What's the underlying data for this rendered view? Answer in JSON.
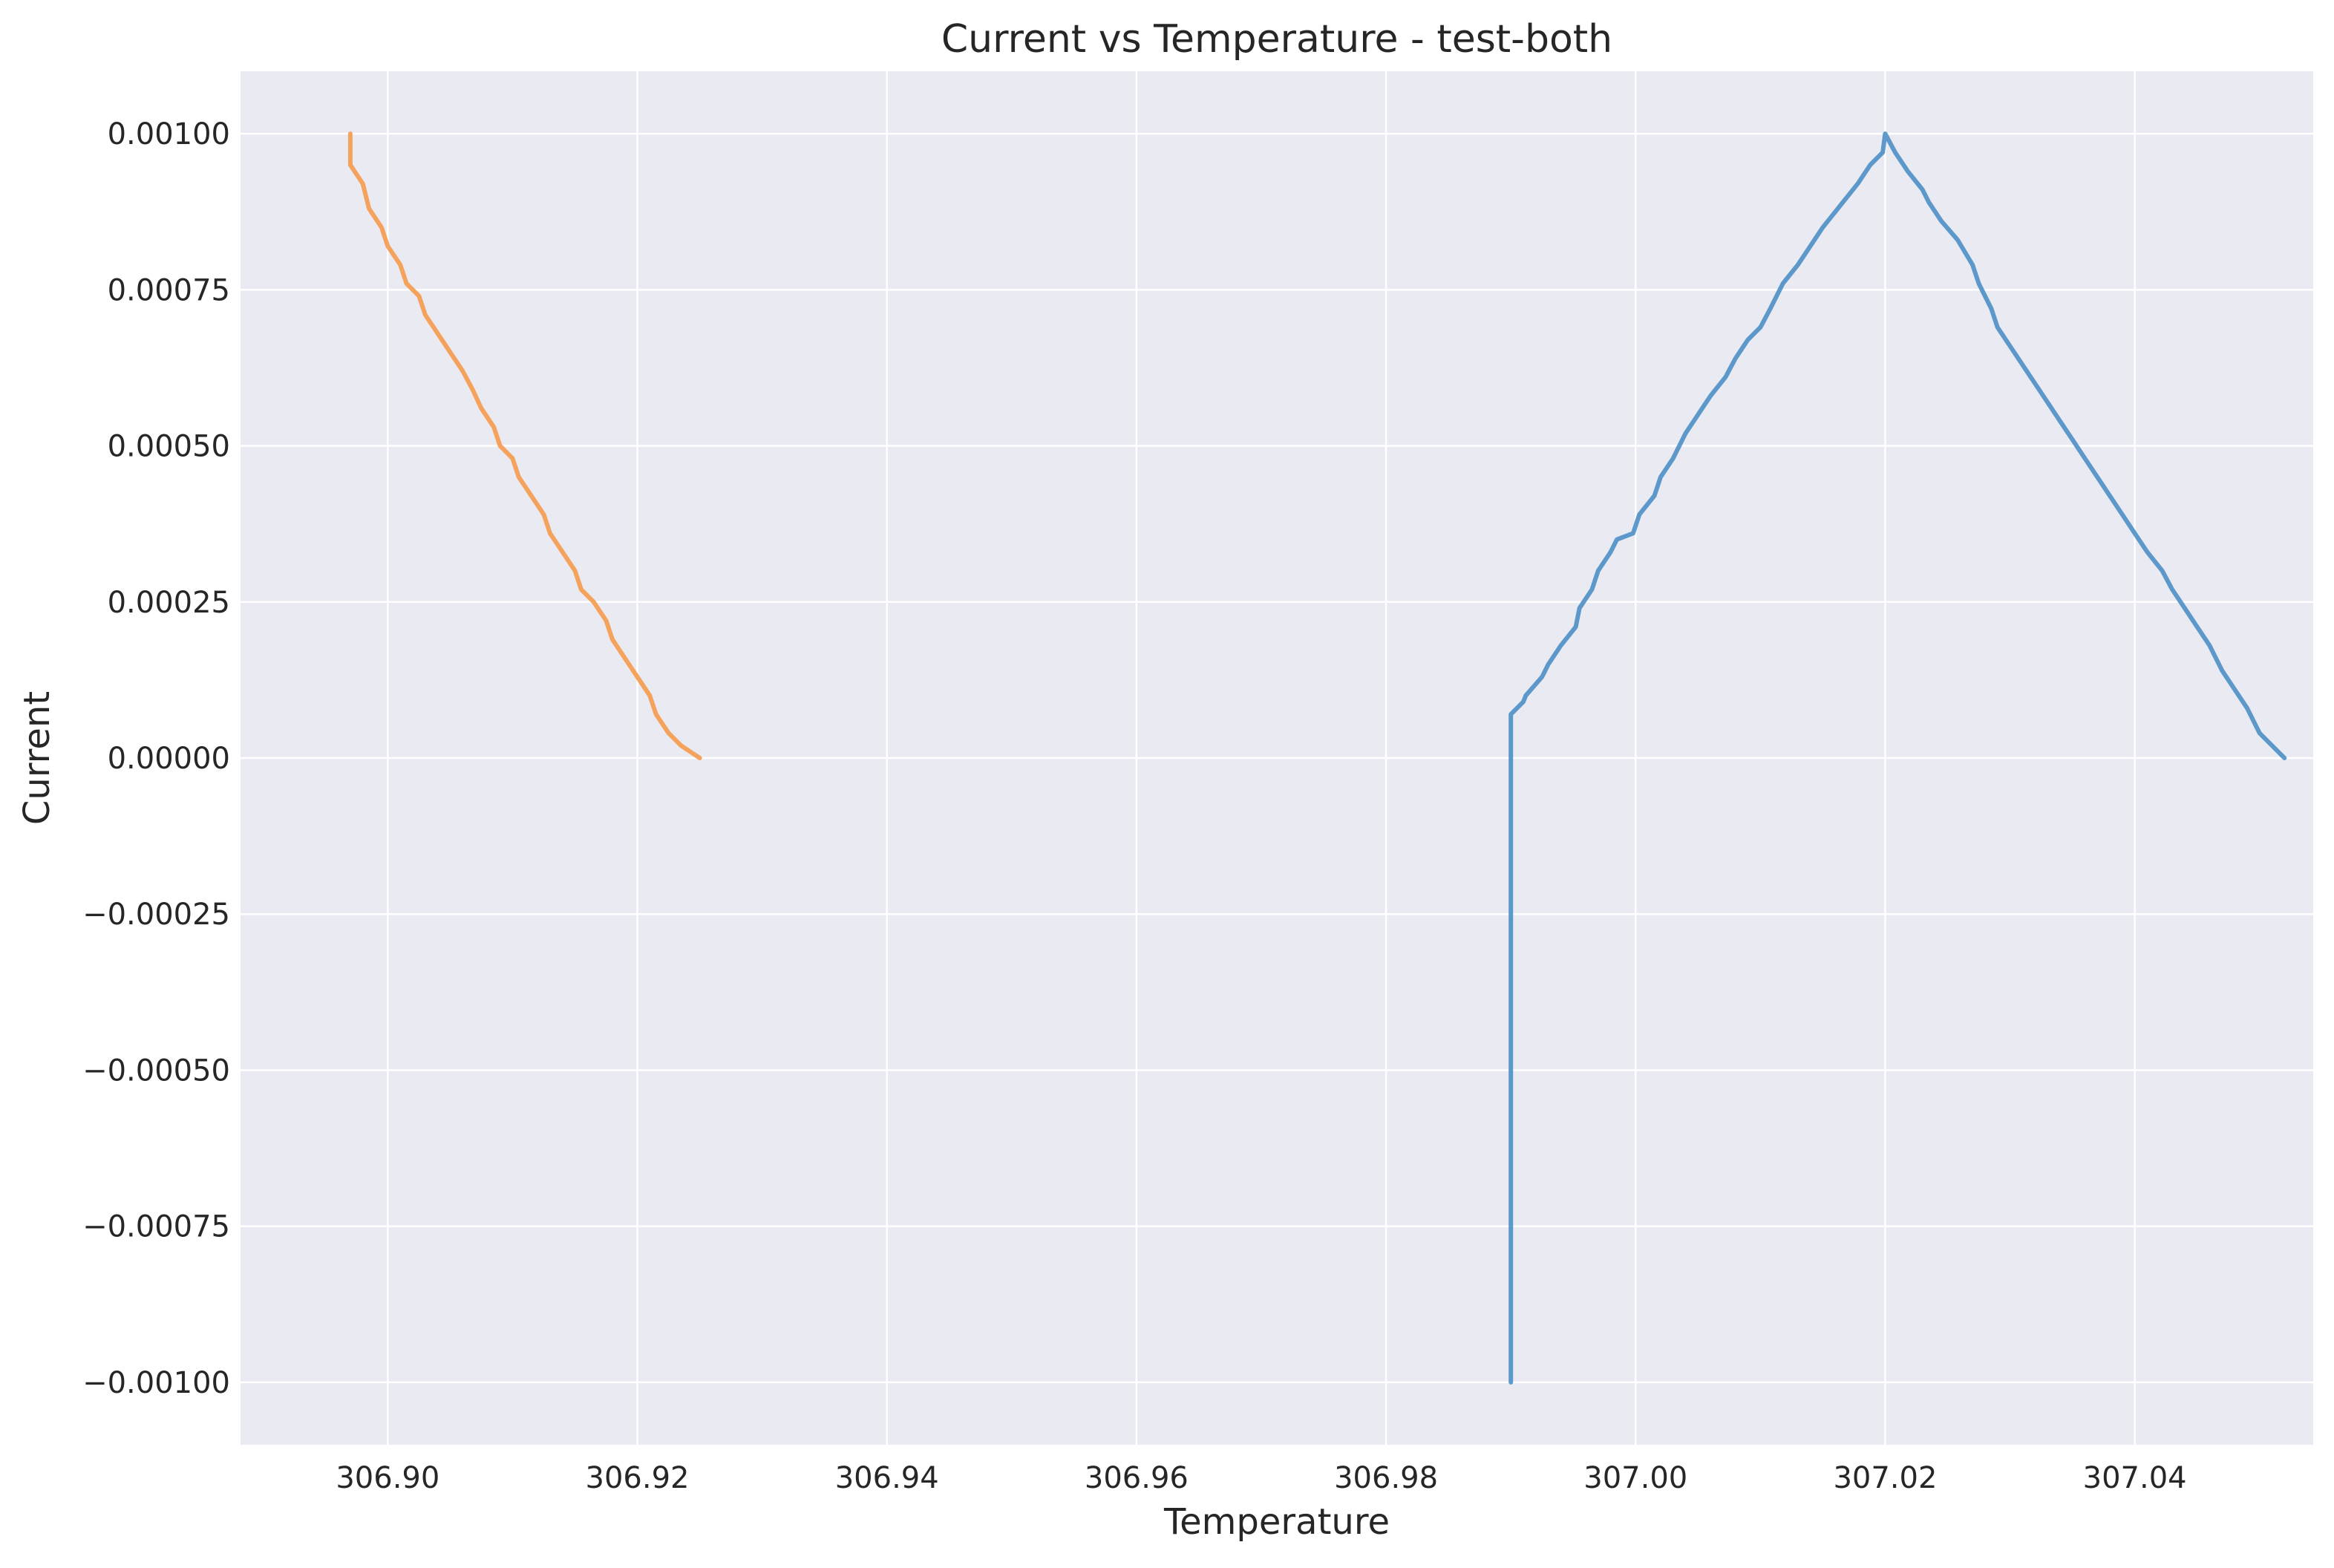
{
  "chart_data": {
    "type": "line",
    "title": "Current vs Temperature - test-both",
    "xlabel": "Temperature",
    "ylabel": "Current",
    "xlim": [
      306.8882,
      307.0543
    ],
    "ylim": [
      -0.0011,
      0.0011
    ],
    "grid": true,
    "x_ticks": [
      306.9,
      306.92,
      306.94,
      306.96,
      306.98,
      307.0,
      307.02,
      307.04
    ],
    "x_tick_labels": [
      "306.90",
      "306.92",
      "306.94",
      "306.96",
      "306.98",
      "307.00",
      "307.02",
      "307.04"
    ],
    "y_ticks": [
      0.001,
      0.00075,
      0.0005,
      0.00025,
      0.0,
      -0.00025,
      -0.0005,
      -0.00075,
      -0.001
    ],
    "y_tick_labels": [
      "0.00100",
      "0.00075",
      "0.00050",
      "0.00025",
      "0.00000",
      "−0.00025",
      "−0.00050",
      "−0.00075",
      "−0.00100"
    ],
    "series": [
      {
        "color": "#4C8FC4",
        "x": [
          306.99,
          306.99,
          306.991,
          306.9912,
          306.9925,
          306.993,
          306.994,
          306.9952,
          306.9955,
          306.9965,
          306.997,
          306.998,
          306.9985,
          306.9998,
          307.0003,
          307.0015,
          307.002,
          307.003,
          307.004,
          307.005,
          307.006,
          307.0072,
          307.008,
          307.009,
          307.01,
          307.0108,
          307.0118,
          307.013,
          307.014,
          307.015,
          307.0162,
          307.017,
          307.0178,
          307.0188,
          307.0198,
          307.02,
          307.0208,
          307.0218,
          307.023,
          307.0235,
          307.0245,
          307.0258,
          307.027,
          307.0275,
          307.0285,
          307.029,
          307.03,
          307.031,
          307.032,
          307.033,
          307.034,
          307.035,
          307.036,
          307.037,
          307.038,
          307.039,
          307.04,
          307.041,
          307.0422,
          307.043,
          307.044,
          307.045,
          307.046,
          307.047,
          307.048,
          307.049,
          307.05,
          307.052
        ],
        "y": [
          -0.001,
          7e-05,
          9e-05,
          0.0001,
          0.00013,
          0.00015,
          0.00018,
          0.00021,
          0.00024,
          0.00027,
          0.0003,
          0.00033,
          0.00035,
          0.00036,
          0.00039,
          0.00042,
          0.00045,
          0.00048,
          0.00052,
          0.00055,
          0.00058,
          0.00061,
          0.00064,
          0.00067,
          0.00069,
          0.00072,
          0.00076,
          0.00079,
          0.00082,
          0.00085,
          0.00088,
          0.0009,
          0.00092,
          0.00095,
          0.00097,
          0.001,
          0.00097,
          0.00094,
          0.00091,
          0.00089,
          0.00086,
          0.00083,
          0.00079,
          0.00076,
          0.00072,
          0.00069,
          0.00066,
          0.00063,
          0.0006,
          0.00057,
          0.00054,
          0.00051,
          0.00048,
          0.00045,
          0.00042,
          0.00039,
          0.00036,
          0.00033,
          0.0003,
          0.00027,
          0.00024,
          0.00021,
          0.00018,
          0.00014,
          0.00011,
          8e-05,
          4e-05,
          0.0
        ]
      },
      {
        "color": "#F59A4B",
        "x": [
          306.897,
          306.897,
          306.898,
          306.8985,
          306.8995,
          306.9,
          306.901,
          306.9015,
          306.9025,
          306.903,
          306.904,
          306.905,
          306.906,
          306.9068,
          306.9075,
          306.9085,
          306.909,
          306.91,
          306.9105,
          306.9115,
          306.9125,
          306.913,
          306.914,
          306.915,
          306.9155,
          306.9165,
          306.9175,
          306.918,
          306.919,
          306.92,
          306.921,
          306.9215,
          306.9225,
          306.9235,
          306.925
        ],
        "y": [
          0.001,
          0.00095,
          0.00092,
          0.00088,
          0.00085,
          0.00082,
          0.00079,
          0.00076,
          0.00074,
          0.00071,
          0.00068,
          0.00065,
          0.00062,
          0.00059,
          0.00056,
          0.00053,
          0.0005,
          0.00048,
          0.00045,
          0.00042,
          0.00039,
          0.00036,
          0.00033,
          0.0003,
          0.00027,
          0.00025,
          0.00022,
          0.00019,
          0.00016,
          0.00013,
          0.0001,
          7e-05,
          4e-05,
          2e-05,
          0.0
        ]
      }
    ]
  }
}
